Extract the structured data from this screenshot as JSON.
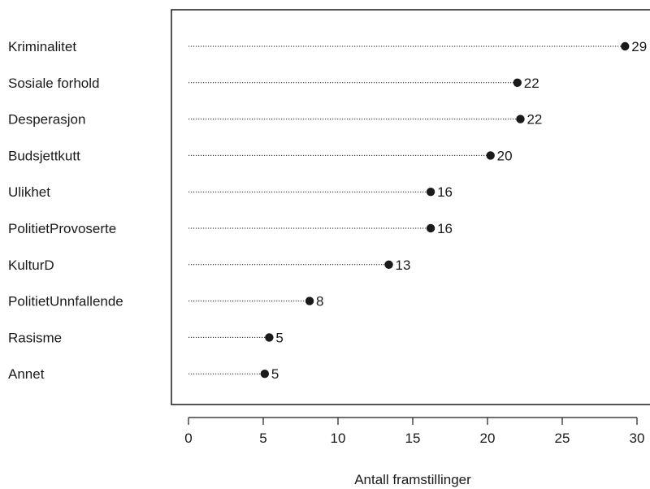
{
  "chart_data": {
    "type": "dotplot",
    "title": "",
    "xlabel": "Antall framstillinger",
    "ylabel": "",
    "xlim": [
      0,
      30
    ],
    "x_ticks": [
      0,
      5,
      10,
      15,
      20,
      25,
      30
    ],
    "grid": false,
    "legend": "none",
    "categories": [
      "Kriminalitet",
      "Sosiale forhold",
      "Desperasjon",
      "Budsjettkutt",
      "Ulikhet",
      "PolitietProvoserte",
      "KulturD",
      "PolitietUnnfallende",
      "Rasisme",
      "Annet"
    ],
    "values": [
      29,
      22,
      22,
      20,
      16,
      16,
      13,
      8,
      5,
      5
    ],
    "plotted_values": [
      29.2,
      22.0,
      22.2,
      20.2,
      16.2,
      16.2,
      13.4,
      8.1,
      5.4,
      5.1
    ],
    "colors": {
      "dot": "#1a1a1a",
      "leader": "#1a1a1a",
      "axis": "#1a1a1a",
      "text": "#1a1a1a"
    }
  }
}
